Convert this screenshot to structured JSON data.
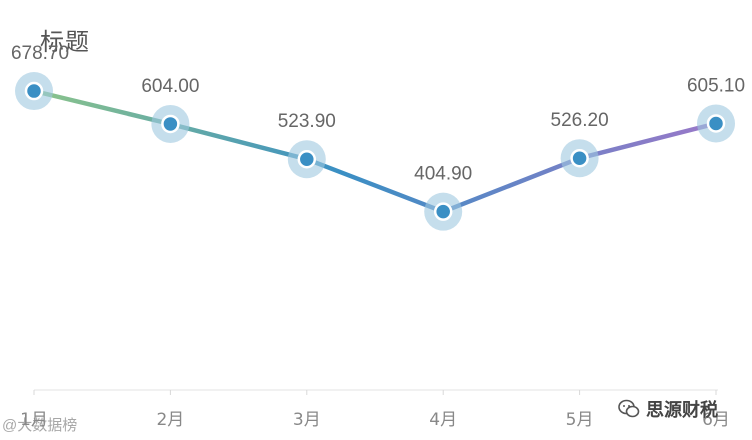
{
  "title": "标题",
  "watermarks": {
    "left": "@大数据榜",
    "right": "思源财税",
    "right_icon": "wechat-icon"
  },
  "colors": {
    "gradient_start": "#8cc48a",
    "gradient_mid": "#3a8fc4",
    "gradient_end": "#9a78c8",
    "marker_fill": "#3a8fc4",
    "marker_halo": "#9ec8e0",
    "label_color": "#666666",
    "tick_color": "#888888"
  },
  "chart_data": {
    "type": "line",
    "title": "标题",
    "categories": [
      "1月",
      "2月",
      "3月",
      "4月",
      "5月",
      "6月"
    ],
    "series": [
      {
        "values": [
          678.7,
          604.0,
          523.9,
          404.9,
          526.2,
          605.1
        ]
      }
    ],
    "data_labels": [
      "678.70",
      "604.00",
      "523.90",
      "404.90",
      "526.20",
      "605.10"
    ],
    "xlabel": "",
    "ylabel": "",
    "ylim": [
      0,
      840
    ],
    "y_axis_visible": false,
    "grid": false,
    "legend": "none"
  }
}
